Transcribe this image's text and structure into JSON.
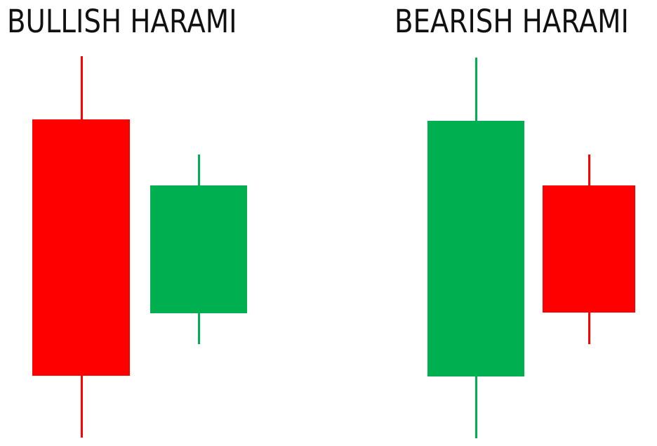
{
  "colors": {
    "bullish": "#00b050",
    "bearish": "#ff0000",
    "background": "#ffffff"
  },
  "patterns": [
    {
      "title": "BULLISH HARAMI",
      "first_candle": "bearish",
      "second_candle": "bullish"
    },
    {
      "title": "BEARISH HARAMI",
      "first_candle": "bullish",
      "second_candle": "bearish"
    }
  ]
}
